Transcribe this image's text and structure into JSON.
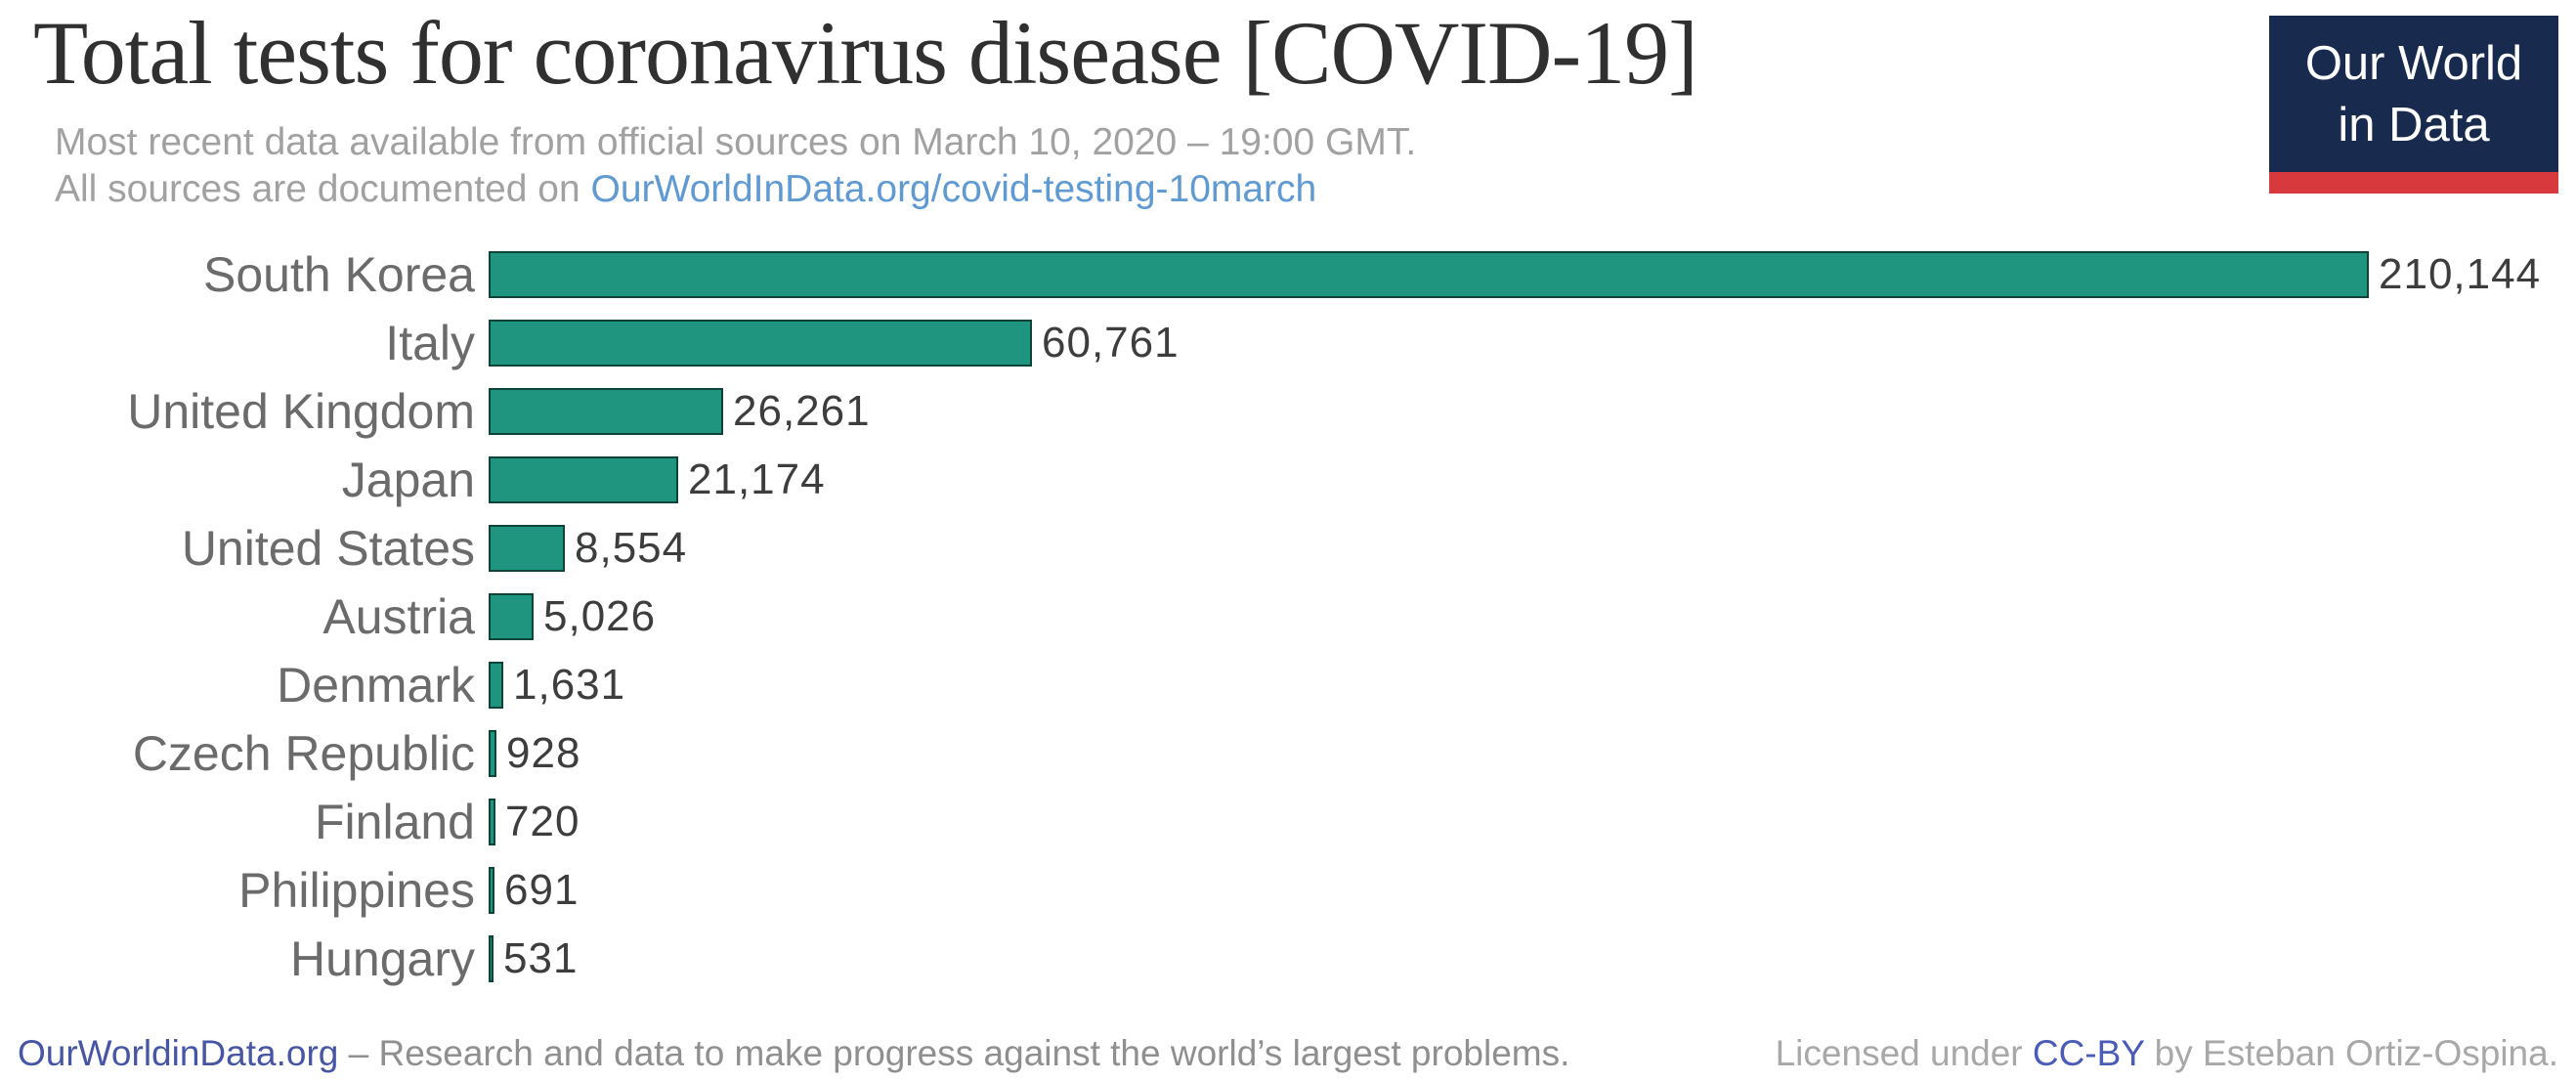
{
  "header": {
    "title": "Total tests for coronavirus disease [COVID-19]",
    "subtitle_line1": "Most recent data available from official sources on March 10, 2020 – 19:00 GMT.",
    "subtitle_line2_prefix": "All sources are documented on ",
    "subtitle_link": "OurWorldInData.org/covid-testing-10march"
  },
  "logo": {
    "line1": "Our World",
    "line2": "in Data",
    "bg_color": "#182a4e",
    "accent_color": "#d8393c",
    "text_color": "#ffffff"
  },
  "chart_data": {
    "type": "bar",
    "orientation": "horizontal",
    "title": "Total tests for coronavirus disease [COVID-19]",
    "xlabel": "",
    "ylabel": "",
    "xlim": [
      0,
      210144
    ],
    "grid": false,
    "legend": false,
    "bar_color": "#1f947e",
    "bar_border_color": "#2c3a37",
    "categories": [
      "South Korea",
      "Italy",
      "United Kingdom",
      "Japan",
      "United States",
      "Austria",
      "Denmark",
      "Czech Republic",
      "Finland",
      "Philippines",
      "Hungary"
    ],
    "values": [
      210144,
      60761,
      26261,
      21174,
      8554,
      5026,
      1631,
      928,
      720,
      691,
      531
    ],
    "value_labels": [
      "210,144",
      "60,761",
      "26,261",
      "21,174",
      "8,554",
      "5,026",
      "1,631",
      "928",
      "720",
      "691",
      "531"
    ]
  },
  "footer": {
    "site_link": "OurWorldinData.org",
    "left_text": " – Research and data to make progress against the world’s largest problems.",
    "license_prefix": "Licensed under ",
    "license_link": "CC-BY",
    "license_suffix": " by Esteban Ortiz-Ospina."
  },
  "colors": {
    "link_blue": "#5f9ad3",
    "footer_link": "#4656a5",
    "license_link": "#4b5cb8",
    "title_text": "#303030",
    "subtitle_text": "#a1a1a1",
    "label_text": "#6b6b6b",
    "value_text": "#3d3d3d"
  }
}
